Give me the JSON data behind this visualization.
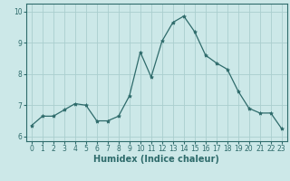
{
  "x": [
    0,
    1,
    2,
    3,
    4,
    5,
    6,
    7,
    8,
    9,
    10,
    11,
    12,
    13,
    14,
    15,
    16,
    17,
    18,
    19,
    20,
    21,
    22,
    23
  ],
  "y": [
    6.35,
    6.65,
    6.65,
    6.85,
    7.05,
    7.0,
    6.5,
    6.5,
    6.65,
    7.3,
    8.7,
    7.9,
    9.05,
    9.65,
    9.85,
    9.35,
    8.6,
    8.35,
    8.15,
    7.45,
    6.9,
    6.75,
    6.75,
    6.25
  ],
  "line_color": "#2e6b6b",
  "marker": "*",
  "marker_size": 3,
  "bg_color": "#cce8e8",
  "grid_color": "#aacece",
  "xlabel": "Humidex (Indice chaleur)",
  "xlim": [
    -0.5,
    23.5
  ],
  "ylim": [
    5.85,
    10.25
  ],
  "yticks": [
    6,
    7,
    8,
    9,
    10
  ],
  "xticks": [
    0,
    1,
    2,
    3,
    4,
    5,
    6,
    7,
    8,
    9,
    10,
    11,
    12,
    13,
    14,
    15,
    16,
    17,
    18,
    19,
    20,
    21,
    22,
    23
  ],
  "label_fontsize": 7,
  "tick_fontsize": 5.5
}
